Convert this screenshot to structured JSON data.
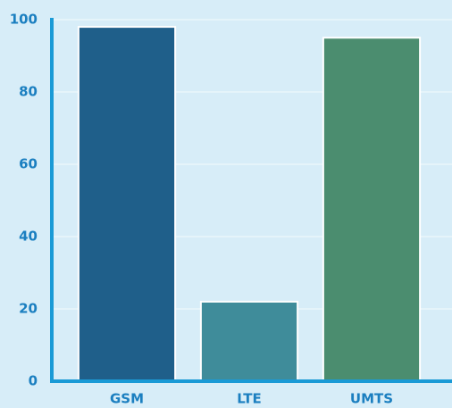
{
  "chart_data": {
    "type": "bar",
    "categories": [
      "GSM",
      "LTE",
      "UMTS"
    ],
    "values": [
      98,
      22,
      95
    ],
    "colors": [
      "#1f5f8a",
      "#3f8c9a",
      "#4b8d6f"
    ],
    "ylim": [
      0,
      100
    ],
    "yticks": [
      0,
      20,
      40,
      60,
      80,
      100
    ],
    "grid": true
  }
}
